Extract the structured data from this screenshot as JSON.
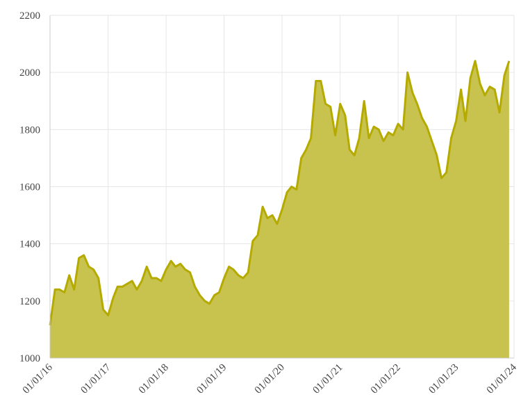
{
  "chart_data": {
    "type": "area",
    "x": [
      "01/01/16",
      "01/02/16",
      "01/03/16",
      "01/04/16",
      "01/05/16",
      "01/06/16",
      "01/07/16",
      "01/08/16",
      "01/09/16",
      "01/10/16",
      "01/11/16",
      "01/12/16",
      "01/01/17",
      "01/02/17",
      "01/03/17",
      "01/04/17",
      "01/05/17",
      "01/06/17",
      "01/07/17",
      "01/08/17",
      "01/09/17",
      "01/10/17",
      "01/11/17",
      "01/12/17",
      "01/01/18",
      "01/02/18",
      "01/03/18",
      "01/04/18",
      "01/05/18",
      "01/06/18",
      "01/07/18",
      "01/08/18",
      "01/09/18",
      "01/10/18",
      "01/11/18",
      "01/12/18",
      "01/01/19",
      "01/02/19",
      "01/03/19",
      "01/04/19",
      "01/05/19",
      "01/06/19",
      "01/07/19",
      "01/08/19",
      "01/09/19",
      "01/10/19",
      "01/11/19",
      "01/12/19",
      "01/01/20",
      "01/02/20",
      "01/03/20",
      "01/04/20",
      "01/05/20",
      "01/06/20",
      "01/07/20",
      "01/08/20",
      "01/09/20",
      "01/10/20",
      "01/11/20",
      "01/12/20",
      "01/01/21",
      "01/02/21",
      "01/03/21",
      "01/04/21",
      "01/05/21",
      "01/06/21",
      "01/07/21",
      "01/08/21",
      "01/09/21",
      "01/10/21",
      "01/11/21",
      "01/12/21",
      "01/01/22",
      "01/02/22",
      "01/03/22",
      "01/04/22",
      "01/05/22",
      "01/06/22",
      "01/07/22",
      "01/08/22",
      "01/09/22",
      "01/10/22",
      "01/11/22",
      "01/12/22",
      "01/01/23",
      "01/02/23",
      "01/03/23",
      "01/04/23",
      "01/05/23",
      "01/06/23",
      "01/07/23",
      "01/08/23",
      "01/09/23",
      "01/10/23",
      "01/11/23",
      "01/12/23"
    ],
    "values": [
      1115,
      1240,
      1240,
      1230,
      1290,
      1240,
      1350,
      1360,
      1320,
      1310,
      1280,
      1170,
      1150,
      1210,
      1250,
      1250,
      1260,
      1270,
      1240,
      1270,
      1320,
      1280,
      1280,
      1270,
      1310,
      1340,
      1320,
      1330,
      1310,
      1300,
      1250,
      1220,
      1200,
      1190,
      1220,
      1230,
      1280,
      1320,
      1310,
      1290,
      1280,
      1300,
      1410,
      1430,
      1530,
      1490,
      1500,
      1470,
      1520,
      1580,
      1600,
      1590,
      1700,
      1730,
      1770,
      1970,
      1970,
      1890,
      1880,
      1780,
      1890,
      1850,
      1730,
      1710,
      1770,
      1900,
      1770,
      1810,
      1800,
      1760,
      1790,
      1780,
      1820,
      1800,
      2000,
      1930,
      1890,
      1840,
      1810,
      1760,
      1710,
      1630,
      1650,
      1770,
      1830,
      1940,
      1830,
      1980,
      2040,
      1960,
      1920,
      1950,
      1940,
      1860,
      1990,
      2040
    ],
    "color": "#b5aa00",
    "fill": "#c8c24e",
    "xlim": [
      "01/01/16",
      "01/01/24"
    ],
    "xticks": [
      "01/01/16",
      "01/01/17",
      "01/01/18",
      "01/01/19",
      "01/01/20",
      "01/01/21",
      "01/01/22",
      "01/01/23",
      "01/01/24"
    ],
    "ylim": [
      1000,
      2200
    ],
    "yticks": [
      1000,
      1200,
      1400,
      1600,
      1800,
      2000,
      2200
    ],
    "grid": true
  }
}
